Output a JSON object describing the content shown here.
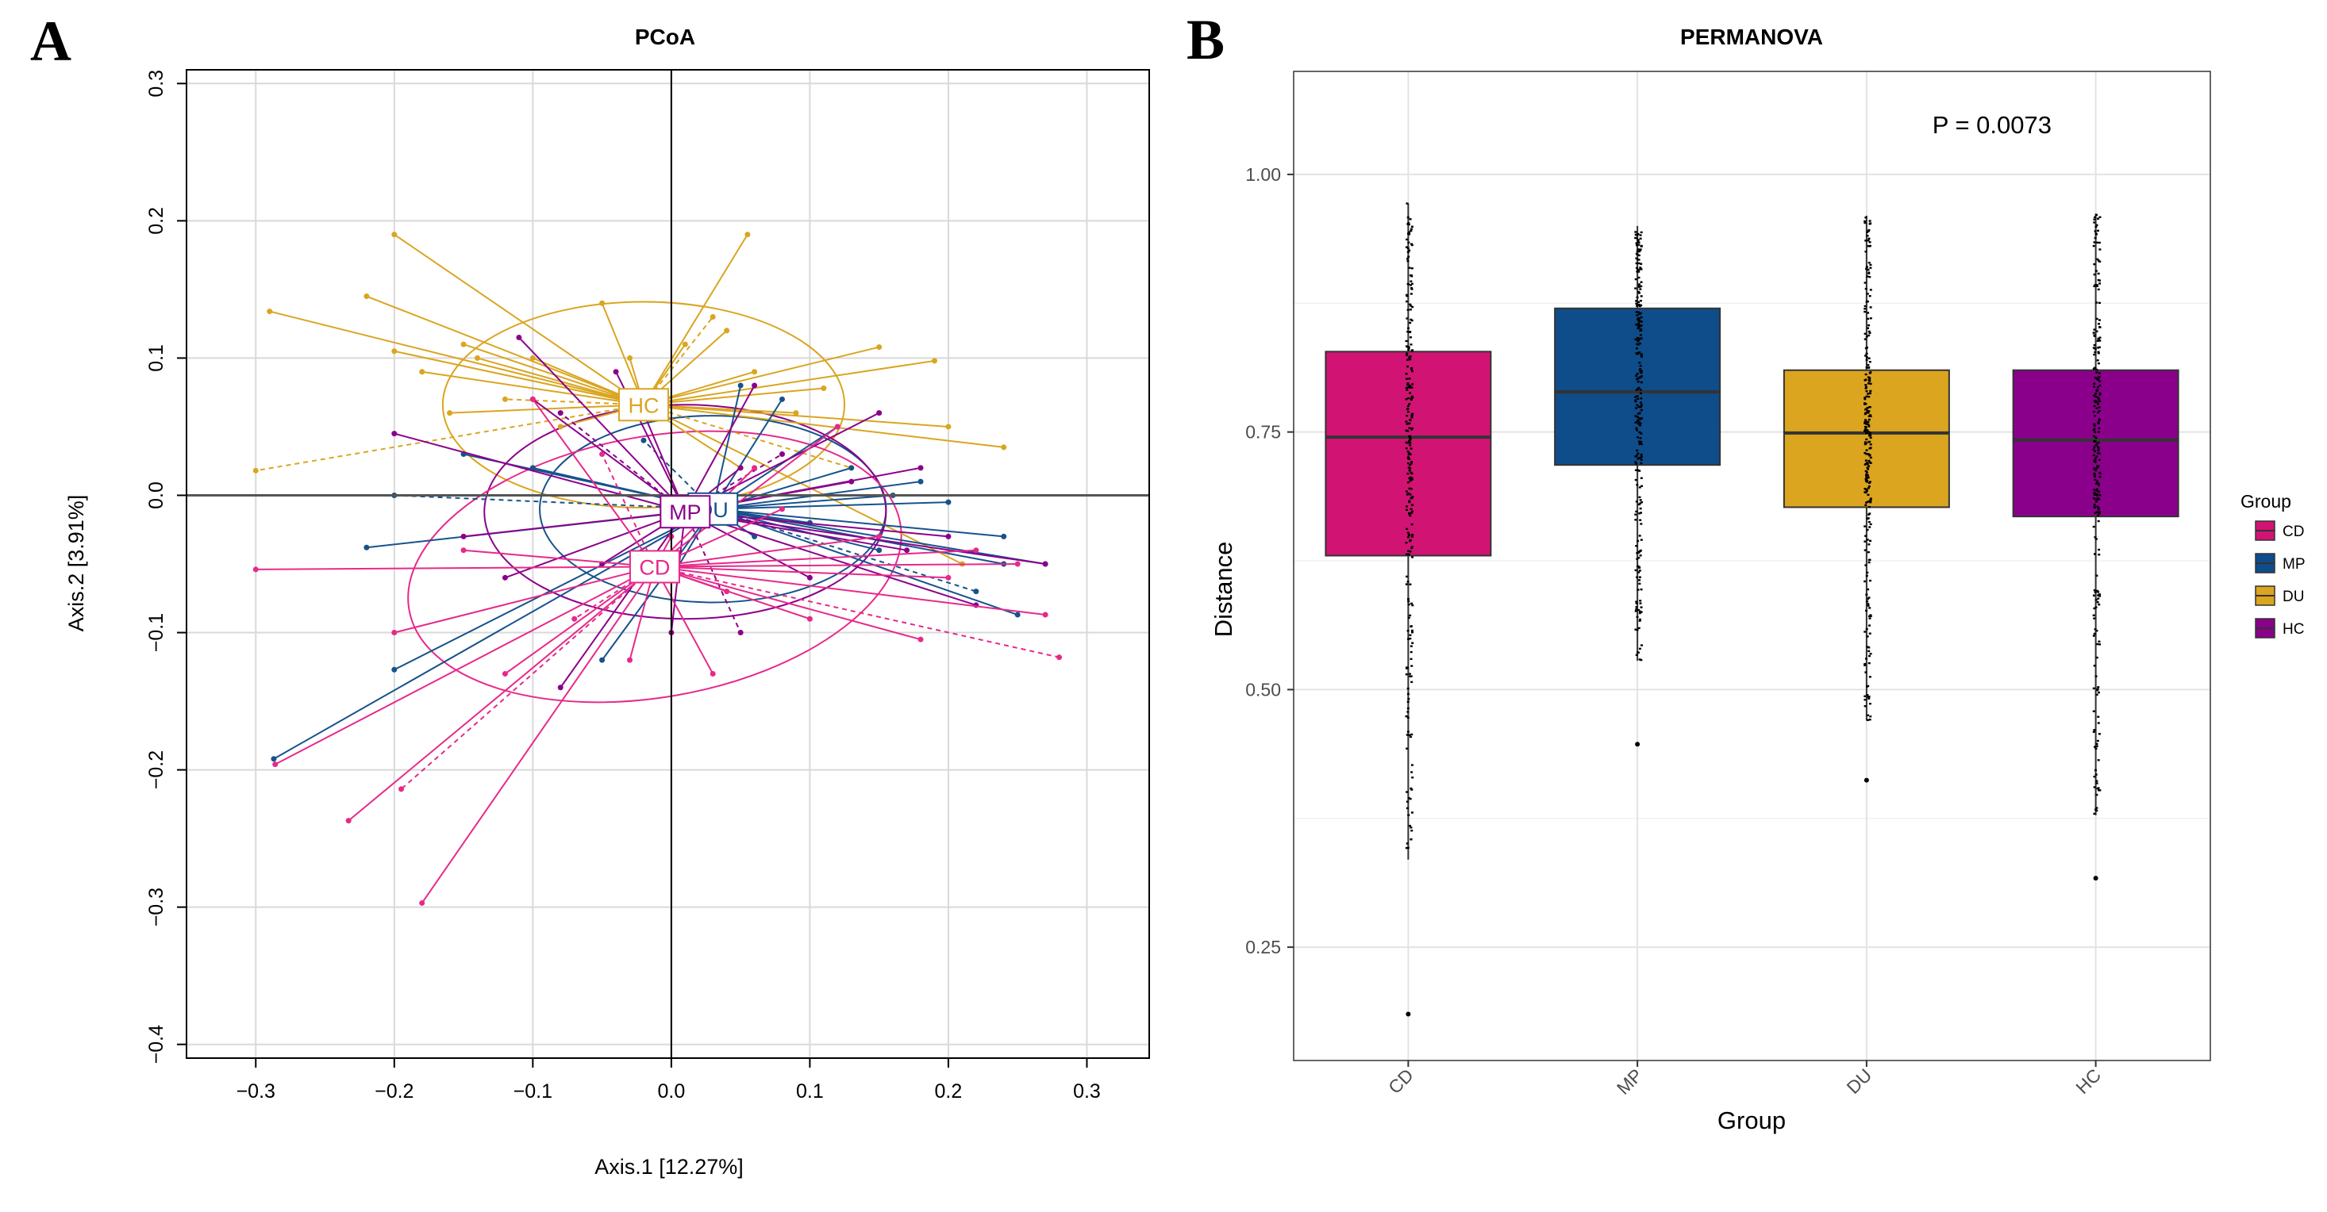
{
  "panels": {
    "a_letter": "A",
    "b_letter": "B"
  },
  "chart_data": [
    {
      "type": "scatter",
      "title": "PCoA",
      "xlabel": "Axis.1  [12.27%]",
      "ylabel": "Axis.2  [3.91%]",
      "xlim": [
        -0.35,
        0.345
      ],
      "ylim": [
        -0.41,
        0.31
      ],
      "xticks": [
        -0.3,
        -0.2,
        -0.1,
        0.0,
        0.1,
        0.2,
        0.3
      ],
      "yticks": [
        -0.4,
        -0.3,
        -0.2,
        -0.1,
        0.0,
        0.1,
        0.2,
        0.3
      ],
      "xtick_labels": [
        "−0.3",
        "−0.2",
        "−0.1",
        "0.0",
        "0.1",
        "0.2",
        "0.3"
      ],
      "ytick_labels": [
        "−0.4",
        "−0.3",
        "−0.2",
        "−0.1",
        "0.0",
        "0.1",
        "0.2",
        "0.3"
      ],
      "grid": true,
      "series": [
        {
          "name": "HC",
          "color": "#DAA520",
          "centroid": [
            -0.02,
            0.066
          ],
          "ellipse": {
            "rx": 0.145,
            "ry": 0.075,
            "angle": 0
          },
          "points": [
            [
              -0.29,
              0.134
            ],
            [
              -0.2,
              0.19
            ],
            [
              -0.22,
              0.145
            ],
            [
              -0.3,
              0.018
            ],
            [
              -0.18,
              0.09
            ],
            [
              -0.15,
              0.11
            ],
            [
              -0.1,
              0.1
            ],
            [
              -0.14,
              0.1
            ],
            [
              -0.2,
              0.105
            ],
            [
              0.055,
              0.19
            ],
            [
              0.03,
              0.13
            ],
            [
              0.04,
              0.12
            ],
            [
              0.06,
              0.09
            ],
            [
              0.15,
              0.108
            ],
            [
              0.19,
              0.098
            ],
            [
              0.24,
              0.035
            ],
            [
              0.11,
              0.078
            ],
            [
              -0.12,
              0.07
            ],
            [
              -0.05,
              0.14
            ],
            [
              -0.03,
              0.1
            ],
            [
              0.09,
              0.06
            ],
            [
              0.2,
              0.05
            ],
            [
              -0.08,
              0.05
            ],
            [
              0.01,
              0.11
            ],
            [
              0.13,
              0.02
            ],
            [
              -0.16,
              0.06
            ],
            [
              0.05,
              0.02
            ],
            [
              0.21,
              -0.05
            ]
          ]
        },
        {
          "name": "DU",
          "color": "#17528C",
          "centroid": [
            0.03,
            -0.01
          ],
          "ellipse": {
            "rx": 0.125,
            "ry": 0.068,
            "angle": 0
          },
          "points": [
            [
              -0.287,
              -0.192
            ],
            [
              -0.2,
              -0.127
            ],
            [
              -0.22,
              -0.038
            ],
            [
              -0.2,
              0.0
            ],
            [
              -0.15,
              0.03
            ],
            [
              -0.05,
              -0.12
            ],
            [
              0.08,
              0.07
            ],
            [
              0.12,
              0.05
            ],
            [
              0.24,
              -0.03
            ],
            [
              0.25,
              -0.087
            ],
            [
              0.22,
              -0.07
            ],
            [
              0.15,
              -0.04
            ],
            [
              0.1,
              -0.02
            ],
            [
              0.18,
              0.01
            ],
            [
              -0.1,
              0.02
            ],
            [
              0.0,
              -0.06
            ],
            [
              0.05,
              0.08
            ],
            [
              -0.02,
              0.04
            ],
            [
              0.2,
              -0.005
            ],
            [
              0.13,
              0.02
            ],
            [
              0.27,
              -0.05
            ],
            [
              0.06,
              -0.03
            ],
            [
              0.24,
              -0.05
            ],
            [
              0.16,
              0.0
            ]
          ]
        },
        {
          "name": "MP",
          "color": "#8B008B",
          "centroid": [
            0.01,
            -0.012
          ],
          "ellipse": {
            "rx": 0.145,
            "ry": 0.078,
            "angle": 0
          },
          "points": [
            [
              -0.2,
              0.045
            ],
            [
              -0.11,
              0.115
            ],
            [
              -0.1,
              0.07
            ],
            [
              -0.08,
              0.06
            ],
            [
              -0.02,
              0.06
            ],
            [
              0.05,
              0.02
            ],
            [
              0.15,
              0.06
            ],
            [
              0.2,
              -0.03
            ],
            [
              0.27,
              -0.05
            ],
            [
              0.1,
              -0.06
            ],
            [
              0.05,
              -0.1
            ],
            [
              -0.05,
              -0.05
            ],
            [
              -0.08,
              -0.14
            ],
            [
              0.0,
              -0.1
            ],
            [
              -0.15,
              -0.03
            ],
            [
              0.13,
              0.01
            ],
            [
              0.17,
              -0.04
            ],
            [
              0.08,
              0.03
            ],
            [
              -0.04,
              0.09
            ],
            [
              0.06,
              0.08
            ],
            [
              -0.12,
              -0.06
            ],
            [
              0.22,
              -0.08
            ],
            [
              0.03,
              -0.02
            ],
            [
              0.18,
              0.02
            ]
          ]
        },
        {
          "name": "CD",
          "color": "#E7298A",
          "centroid": [
            -0.012,
            -0.052
          ],
          "ellipse": {
            "rx": 0.18,
            "ry": 0.095,
            "angle": -10
          },
          "points": [
            [
              -0.3,
              -0.054
            ],
            [
              -0.286,
              -0.196
            ],
            [
              -0.233,
              -0.237
            ],
            [
              -0.195,
              -0.214
            ],
            [
              -0.18,
              -0.297
            ],
            [
              -0.12,
              -0.13
            ],
            [
              -0.03,
              -0.12
            ],
            [
              0.03,
              -0.13
            ],
            [
              0.1,
              -0.09
            ],
            [
              0.18,
              -0.105
            ],
            [
              0.28,
              -0.118
            ],
            [
              0.27,
              -0.087
            ],
            [
              0.2,
              -0.06
            ],
            [
              0.15,
              -0.03
            ],
            [
              0.12,
              0.05
            ],
            [
              0.06,
              0.02
            ],
            [
              -0.1,
              0.07
            ],
            [
              -0.05,
              0.03
            ],
            [
              -0.15,
              -0.04
            ],
            [
              0.0,
              -0.03
            ],
            [
              0.08,
              -0.01
            ],
            [
              -0.2,
              -0.1
            ],
            [
              0.25,
              -0.05
            ],
            [
              0.04,
              -0.07
            ],
            [
              -0.07,
              -0.09
            ],
            [
              0.22,
              -0.04
            ]
          ]
        }
      ]
    },
    {
      "type": "box",
      "title": "PERMANOVA",
      "xlabel": "Group",
      "ylabel": "Distance",
      "ylim": [
        0.14,
        1.1
      ],
      "yticks": [
        0.25,
        0.5,
        0.75,
        1.0
      ],
      "ytick_labels": [
        "0.25",
        "0.50",
        "0.75",
        "1.00"
      ],
      "categories": [
        "CD",
        "MP",
        "DU",
        "HC"
      ],
      "annotation": "P = 0.0073",
      "grid": true,
      "legend_position": "right",
      "legend_title": "Group",
      "legend": [
        "CD",
        "MP",
        "DU",
        "HC"
      ],
      "series": [
        {
          "name": "CD",
          "color": "#D11473",
          "q1": 0.63,
          "median": 0.745,
          "q3": 0.828,
          "whisker_low": 0.335,
          "whisker_high": 0.972,
          "min": 0.185,
          "outliers": [
            0.185
          ]
        },
        {
          "name": "MP",
          "color": "#0F4C8A",
          "q1": 0.718,
          "median": 0.789,
          "q3": 0.87,
          "whisker_low": 0.528,
          "whisker_high": 0.95,
          "min": 0.447,
          "outliers": [
            0.447
          ]
        },
        {
          "name": "DU",
          "color": "#DBA520",
          "q1": 0.677,
          "median": 0.749,
          "q3": 0.81,
          "whisker_low": 0.47,
          "whisker_high": 0.96,
          "min": 0.412,
          "outliers": [
            0.412
          ]
        },
        {
          "name": "HC",
          "color": "#8B008B",
          "q1": 0.668,
          "median": 0.742,
          "q3": 0.81,
          "whisker_low": 0.378,
          "whisker_high": 0.962,
          "min": 0.317,
          "outliers": [
            0.317
          ]
        }
      ]
    }
  ]
}
